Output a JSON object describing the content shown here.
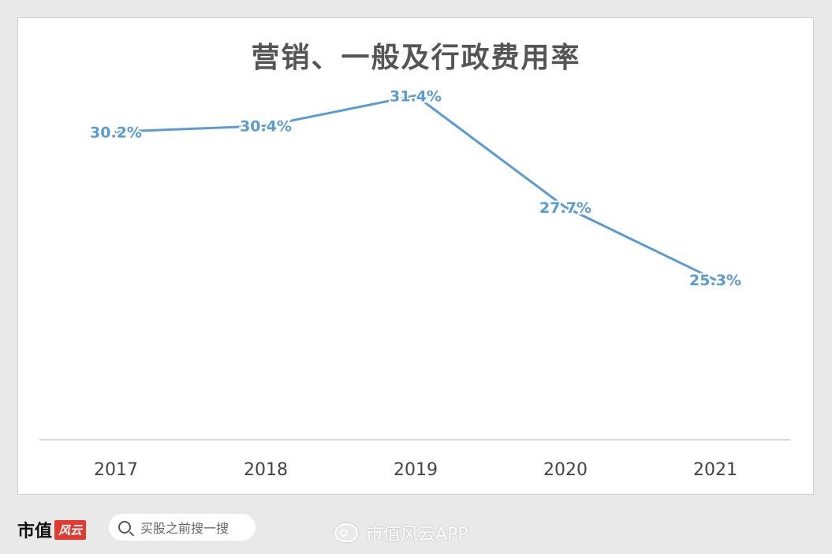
{
  "chart_data": {
    "type": "line",
    "title": "营销、一般及行政费用率",
    "xlabel": "",
    "ylabel": "",
    "categories": [
      "2017",
      "2018",
      "2019",
      "2020",
      "2021"
    ],
    "values": [
      30.2,
      30.4,
      31.4,
      27.7,
      25.3
    ],
    "data_labels": [
      "30.2%",
      "30.4%",
      "31.4%",
      "27.7%",
      "25.3%"
    ],
    "ylim": [
      20,
      33
    ],
    "grid": false,
    "legend": "none",
    "line_color": "#5b9bd5",
    "label_color": "#5b9bd5"
  },
  "footer": {
    "brand": "市值",
    "brand_tag": "风云",
    "search_text": "买股之前搜一搜",
    "weibo_text": "市值风云APP"
  },
  "colors": {
    "title": "#555555",
    "axis_text": "#444444",
    "axis_line": "#d9d9d9"
  }
}
